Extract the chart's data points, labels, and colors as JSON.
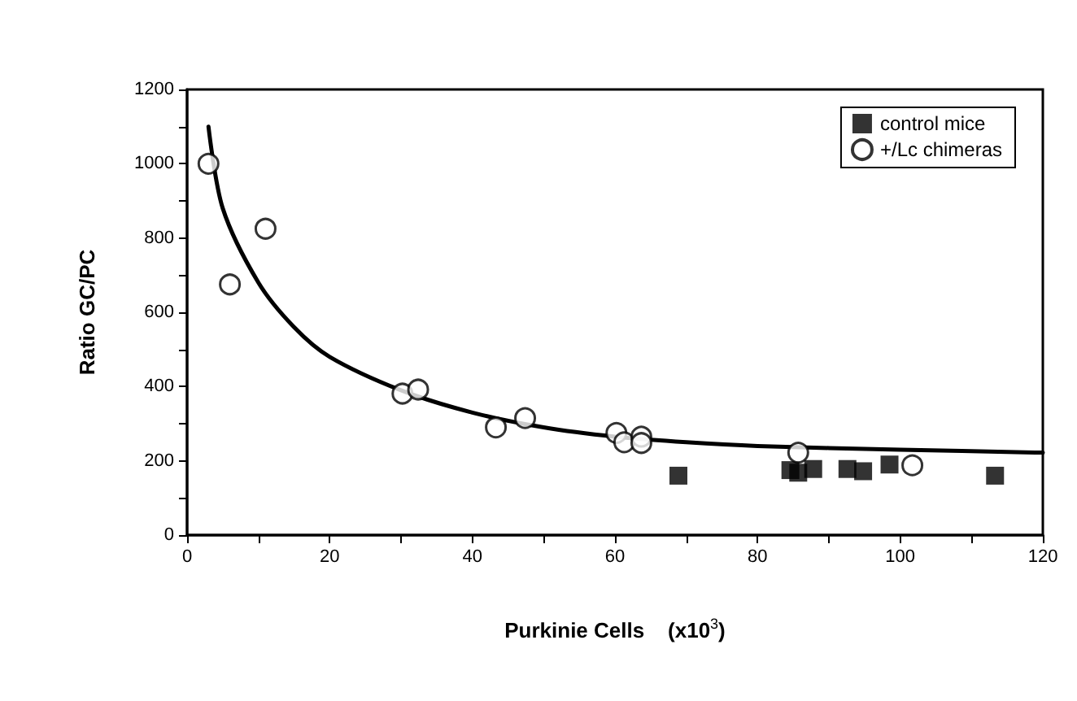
{
  "chart_data": {
    "type": "scatter",
    "xlabel": "Purkinie Cells    (x10$^{3}$)",
    "ylabel": "Ratio GC/PC",
    "xlim": [
      0,
      120
    ],
    "xticks": [
      0,
      20,
      40,
      60,
      80,
      100,
      120
    ],
    "ylim": [
      0,
      1200
    ],
    "yticks": [
      0,
      200,
      400,
      600,
      800,
      1000,
      1200
    ],
    "grid": false,
    "legend": "top right",
    "series": [
      {
        "name": "control mice",
        "color": "#000000",
        "marker": "square",
        "x": [
          68.9,
          84.6,
          85.7,
          87.8,
          92.6,
          94.8,
          98.5,
          113.3
        ],
        "values": [
          160,
          175,
          168,
          178,
          178,
          172,
          190,
          160
        ]
      },
      {
        "name": "+/Lc chimeras",
        "color": "#000000",
        "marker": "circle",
        "x": [
          3,
          6,
          11,
          30.2,
          32.4,
          43.3,
          47.4,
          60.2,
          61.3,
          63.7,
          63.7,
          85.7,
          101.7
        ],
        "values": [
          1000,
          675,
          825,
          381,
          392,
          290,
          315,
          275,
          250,
          265,
          248,
          222,
          188
        ]
      },
      {
        "type": "line",
        "color": "#000000",
        "marker": "none",
        "x": [
          3,
          5,
          10,
          15,
          20,
          30,
          40,
          50,
          60,
          70,
          80,
          100,
          120
        ],
        "values": [
          1100,
          880,
          680,
          560,
          480,
          390,
          330,
          290,
          265,
          250,
          240,
          230,
          222
        ]
      }
    ]
  }
}
